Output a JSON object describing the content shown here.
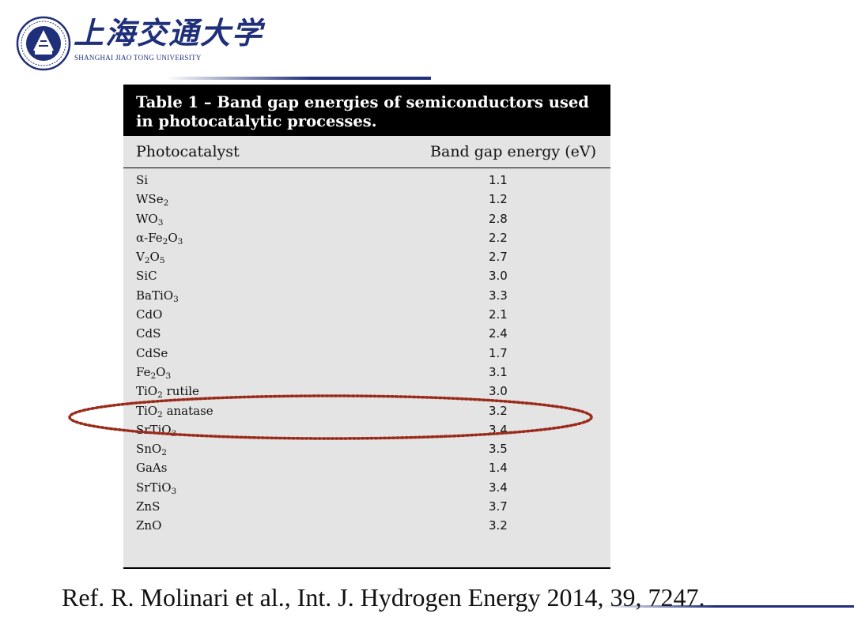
{
  "header": {
    "university_cn": "上海交通大学",
    "university_en": "Shanghai Jiao Tong University"
  },
  "table": {
    "caption": "Table 1 – Band gap energies of semiconductors used in photocatalytic processes.",
    "columns": [
      "Photocatalyst",
      "Band gap energy (eV)"
    ],
    "rows": [
      {
        "name": "Si",
        "value": "1.1"
      },
      {
        "name": "WSe₂",
        "value": "1.2"
      },
      {
        "name": "WO₃",
        "value": "2.8"
      },
      {
        "name": "α-Fe₂O₃",
        "value": "2.2"
      },
      {
        "name": "V₂O₅",
        "value": "2.7"
      },
      {
        "name": "SiC",
        "value": "3.0"
      },
      {
        "name": "BaTiO₃",
        "value": "3.3"
      },
      {
        "name": "CdO",
        "value": "2.1"
      },
      {
        "name": "CdS",
        "value": "2.4"
      },
      {
        "name": "CdSe",
        "value": "1.7"
      },
      {
        "name": "Fe₂O₃",
        "value": "3.1"
      },
      {
        "name": "TiO₂ rutile",
        "value": "3.0"
      },
      {
        "name": "TiO₂ anatase",
        "value": "3.2"
      },
      {
        "name": "SrTiO₃",
        "value": "3.4"
      },
      {
        "name": "SnO₂",
        "value": "3.5"
      },
      {
        "name": "GaAs",
        "value": "1.4"
      },
      {
        "name": "SrTiO₃",
        "value": "3.4"
      },
      {
        "name": "ZnS",
        "value": "3.7"
      },
      {
        "name": "ZnO",
        "value": "3.2"
      }
    ]
  },
  "highlight": {
    "color": "#9a2a1a"
  },
  "reference": "Ref. R. Molinari et al., Int. J. Hydrogen Energy 2014, 39, 7247.",
  "colors": {
    "brand": "#1f2f7a"
  }
}
